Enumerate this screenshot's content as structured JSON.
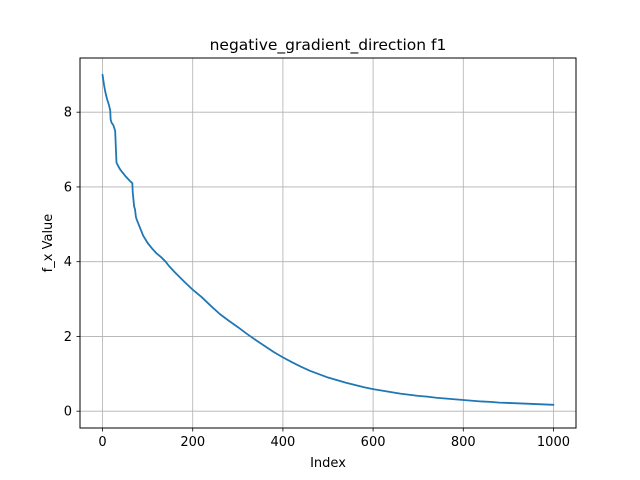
{
  "chart_data": {
    "type": "line",
    "title": "negative_gradient_direction f1",
    "xlabel": "Index",
    "ylabel": "f_x Value",
    "xlim": [
      -50,
      1050
    ],
    "ylim": [
      -0.45,
      9.45
    ],
    "xticks": [
      0,
      200,
      400,
      600,
      800,
      1000
    ],
    "yticks": [
      0,
      2,
      4,
      6,
      8
    ],
    "xtick_labels": [
      "0",
      "200",
      "400",
      "600",
      "800",
      "1000"
    ],
    "ytick_labels": [
      "0",
      "2",
      "4",
      "6",
      "8"
    ],
    "grid": true,
    "legend": "none",
    "series": [
      {
        "color": "#1f77b4",
        "x": [
          0,
          3,
          6,
          10,
          14,
          17,
          18,
          20,
          24,
          28,
          30,
          31,
          35,
          40,
          50,
          60,
          66,
          67,
          70,
          72,
          74,
          76,
          80,
          85,
          90,
          100,
          110,
          120,
          130,
          140,
          145,
          150,
          160,
          180,
          200,
          220,
          240,
          260,
          280,
          300,
          320,
          340,
          360,
          380,
          400,
          420,
          440,
          460,
          480,
          500,
          520,
          540,
          560,
          580,
          600,
          620,
          640,
          660,
          680,
          700,
          720,
          740,
          760,
          780,
          800,
          820,
          840,
          860,
          880,
          900,
          920,
          940,
          960,
          980,
          1000
        ],
        "y": [
          9.0,
          8.75,
          8.55,
          8.35,
          8.2,
          8.05,
          7.8,
          7.72,
          7.65,
          7.5,
          6.9,
          6.65,
          6.55,
          6.45,
          6.3,
          6.17,
          6.1,
          5.85,
          5.48,
          5.4,
          5.2,
          5.12,
          5.0,
          4.85,
          4.7,
          4.5,
          4.35,
          4.22,
          4.12,
          4.0,
          3.92,
          3.85,
          3.72,
          3.48,
          3.25,
          3.05,
          2.82,
          2.6,
          2.42,
          2.25,
          2.07,
          1.9,
          1.74,
          1.58,
          1.44,
          1.31,
          1.19,
          1.08,
          0.99,
          0.9,
          0.83,
          0.76,
          0.7,
          0.64,
          0.59,
          0.55,
          0.51,
          0.47,
          0.44,
          0.41,
          0.39,
          0.36,
          0.34,
          0.32,
          0.3,
          0.28,
          0.26,
          0.25,
          0.23,
          0.22,
          0.21,
          0.2,
          0.19,
          0.18,
          0.17
        ]
      }
    ]
  }
}
